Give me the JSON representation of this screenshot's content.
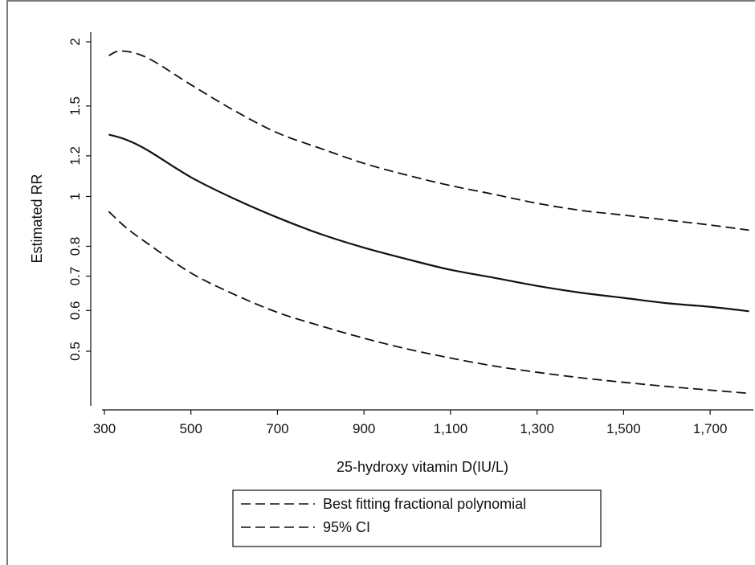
{
  "chart_data": {
    "type": "line",
    "title": "",
    "xlabel": "25-hydroxy vitamin D(IU/L)",
    "ylabel": "Estimated RR",
    "y_scale": "log",
    "xlim": [
      300,
      1800
    ],
    "x_ticks": [
      300,
      500,
      700,
      900,
      1100,
      1300,
      1500,
      1700
    ],
    "x_tick_labels": [
      "300",
      "500",
      "700",
      "900",
      "1,100",
      "1,300",
      "1,500",
      "1,700"
    ],
    "y_ticks": [
      0.5,
      0.6,
      0.7,
      0.8,
      1,
      1.2,
      1.5,
      2
    ],
    "y_tick_labels": [
      "0.5",
      "0.6",
      "0.7",
      "0.8",
      "1",
      "1.2",
      "1.5",
      "2"
    ],
    "grid": false,
    "legend_position": "bottom",
    "legend": [
      {
        "label": "Best fitting fractional polynomial",
        "style": "dashed"
      },
      {
        "label": "95% CI",
        "style": "dashed"
      }
    ],
    "series": [
      {
        "role": "upper-ci",
        "style": "dashed",
        "x": [
          310,
          340,
          400,
          500,
          600,
          700,
          800,
          900,
          1000,
          1100,
          1200,
          1300,
          1400,
          1500,
          1600,
          1700,
          1790
        ],
        "y": [
          1.88,
          1.92,
          1.86,
          1.65,
          1.47,
          1.33,
          1.24,
          1.16,
          1.1,
          1.05,
          1.01,
          0.97,
          0.94,
          0.92,
          0.9,
          0.88,
          0.86
        ]
      },
      {
        "role": "estimate",
        "style": "solid",
        "x": [
          310,
          350,
          400,
          500,
          600,
          700,
          800,
          900,
          1000,
          1100,
          1200,
          1300,
          1400,
          1500,
          1600,
          1700,
          1790
        ],
        "y": [
          1.32,
          1.29,
          1.23,
          1.09,
          0.99,
          0.91,
          0.845,
          0.795,
          0.755,
          0.72,
          0.695,
          0.67,
          0.65,
          0.635,
          0.62,
          0.61,
          0.598
        ]
      },
      {
        "role": "lower-ci",
        "style": "dashed",
        "x": [
          310,
          350,
          400,
          500,
          600,
          700,
          800,
          900,
          1000,
          1100,
          1200,
          1300,
          1400,
          1500,
          1600,
          1700,
          1790
        ],
        "y": [
          0.935,
          0.87,
          0.81,
          0.71,
          0.645,
          0.595,
          0.56,
          0.53,
          0.505,
          0.485,
          0.468,
          0.455,
          0.444,
          0.435,
          0.427,
          0.42,
          0.414
        ]
      }
    ]
  }
}
